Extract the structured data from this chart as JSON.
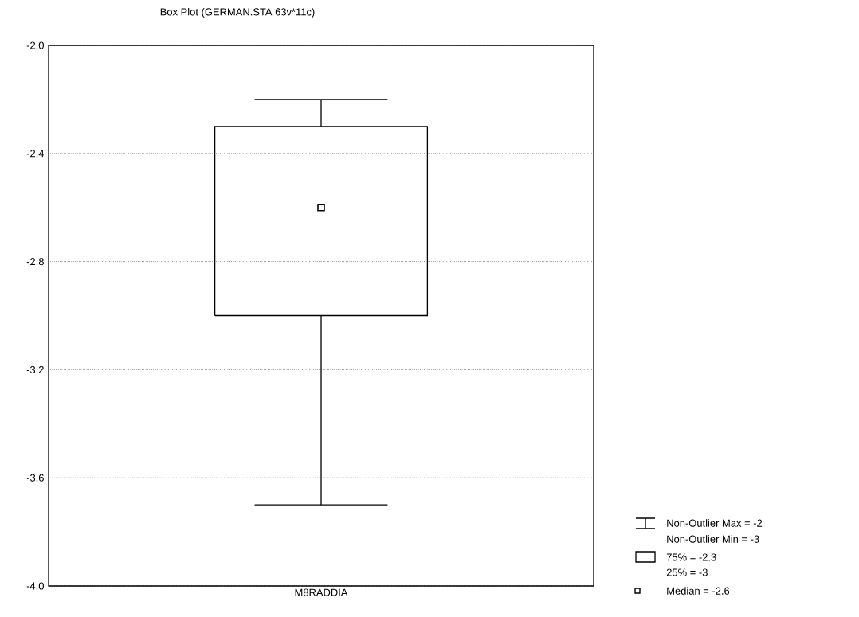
{
  "chart_data": {
    "type": "box",
    "title": "Box Plot (GERMAN.STA 63v*11c)",
    "categories": [
      "M8RADDIA"
    ],
    "boxes": [
      {
        "low": -3.7,
        "q1": -3.0,
        "median": -2.6,
        "q3": -2.3,
        "high": -2.2
      }
    ],
    "ylim": [
      -4.0,
      -2.0
    ],
    "yticks": [
      {
        "value": -4.0,
        "label": "-4.0"
      },
      {
        "value": -3.6,
        "label": "-3.6"
      },
      {
        "value": -3.2,
        "label": "-3.2"
      },
      {
        "value": -2.8,
        "label": "-2.8"
      },
      {
        "value": -2.4,
        "label": "-2.4"
      },
      {
        "value": -2.0,
        "label": "-2.0"
      }
    ],
    "grid": "y",
    "marker": "square",
    "annotations": [
      "Non-Outlier Max = -2",
      "Non-Outlier Min = -3",
      "75% = -2.3",
      "25% = -3",
      "Median = -2.6"
    ]
  }
}
